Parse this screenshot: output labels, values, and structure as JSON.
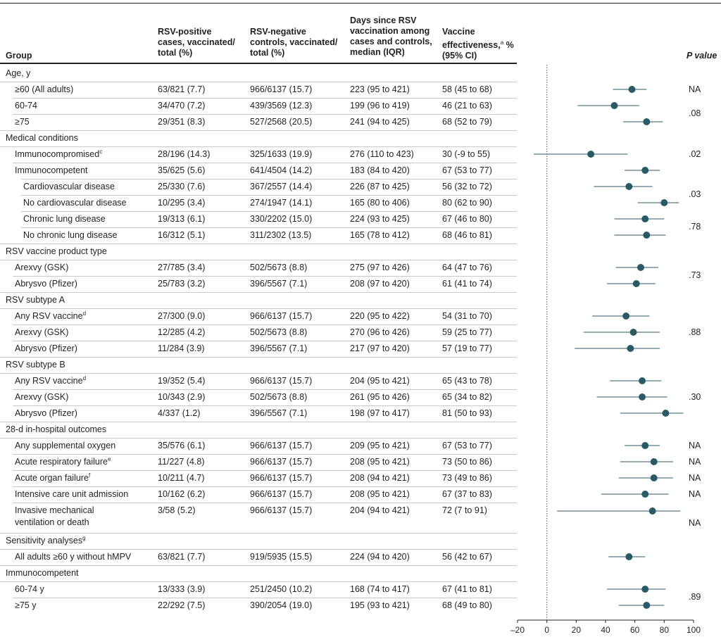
{
  "headers": {
    "group": "Group",
    "pos_l1": "RSV-positive",
    "pos_l2": "cases, vaccinated/",
    "pos_l3": "total (%)",
    "neg_l1": "RSV-negative",
    "neg_l2": "controls, vaccinated/",
    "neg_l3": "total (%)",
    "days_l1": "Days since RSV",
    "days_l2": "vaccination among",
    "days_l3": "cases and controls,",
    "days_l4": "median (IQR)",
    "ve_l1": "Vaccine",
    "ve_l2": "effectiveness,",
    "ve_l2_sup": "a",
    "ve_l2_tail": " %",
    "ve_l3": "(95% CI)",
    "p": "P value"
  },
  "rows": [
    {
      "label": "Age, y",
      "type": "section"
    },
    {
      "label": "≥60 (All adults)",
      "type": "item",
      "pos": "63/821 (7.7)",
      "neg": "966/6137 (15.7)",
      "days": "223 (95 to 421)",
      "ve": "58 (45 to 68)"
    },
    {
      "label": "60-74",
      "type": "item",
      "pos": "34/470 (7.2)",
      "neg": "439/3569 (12.3)",
      "days": "199 (96 to 419)",
      "ve": "46 (21 to 63)"
    },
    {
      "label": "≥75",
      "type": "item",
      "pos": "29/351 (8.3)",
      "neg": "527/2568 (20.5)",
      "days": "241 (94 to 425)",
      "ve": "68 (52 to 79)"
    },
    {
      "label": "Medical conditions",
      "type": "section"
    },
    {
      "label": "Immunocompromised",
      "sup": "c",
      "type": "item",
      "pos": "28/196 (14.3)",
      "neg": "325/1633 (19.9)",
      "days": "276 (110 to 423)",
      "ve": "30 (-9 to 55)"
    },
    {
      "label": "Immunocompetent",
      "type": "item",
      "pos": "35/625 (5.6)",
      "neg": "641/4504 (14.2)",
      "days": "183 (84 to 420)",
      "ve": "67 (53 to 77)"
    },
    {
      "label": "Cardiovascular disease",
      "type": "sub",
      "pos": "25/330 (7.6)",
      "neg": "367/2557 (14.4)",
      "days": "226 (87 to 425)",
      "ve": "56 (32 to 72)"
    },
    {
      "label": "No cardiovascular disease",
      "type": "sub",
      "pos": "10/295 (3.4)",
      "neg": "274/1947 (14.1)",
      "days": "165 (80 to 406)",
      "ve": "80 (62 to 90)"
    },
    {
      "label": "Chronic lung disease",
      "type": "sub",
      "pos": "19/313 (6.1)",
      "neg": "330/2202 (15.0)",
      "days": "224 (93 to 425)",
      "ve": "67 (46 to 80)"
    },
    {
      "label": "No chronic lung disease",
      "type": "sub",
      "pos": "16/312 (5.1)",
      "neg": "311/2302 (13.5)",
      "days": "165 (78 to 412)",
      "ve": "68 (46 to 81)"
    },
    {
      "label": "RSV vaccine product type",
      "type": "section"
    },
    {
      "label": "Arexvy (GSK)",
      "type": "item",
      "pos": "27/785 (3.4)",
      "neg": "502/5673 (8.8)",
      "days": "275 (97 to 426)",
      "ve": "64 (47 to 76)"
    },
    {
      "label": "Abrysvo (Pfizer)",
      "type": "item",
      "pos": "25/783 (3.2)",
      "neg": "396/5567 (7.1)",
      "days": "208 (97 to 420)",
      "ve": "61 (41 to 74)"
    },
    {
      "label": "RSV subtype A",
      "type": "section"
    },
    {
      "label": "Any RSV vaccine",
      "sup": "d",
      "type": "item",
      "pos": "27/300 (9.0)",
      "neg": "966/6137 (15.7)",
      "days": "220 (95 to 422)",
      "ve": "54 (31 to 70)"
    },
    {
      "label": "Arexvy (GSK)",
      "type": "item",
      "pos": "12/285 (4.2)",
      "neg": "502/5673 (8.8)",
      "days": "270 (96 to 426)",
      "ve": "59 (25 to 77)"
    },
    {
      "label": "Abrysvo (Pfizer)",
      "type": "item",
      "pos": "11/284 (3.9)",
      "neg": "396/5567 (7.1)",
      "days": "217 (97 to 420)",
      "ve": "57 (19 to 77)"
    },
    {
      "label": "RSV subtype B",
      "type": "section"
    },
    {
      "label": "Any RSV vaccine",
      "sup": "d",
      "type": "item",
      "pos": "19/352 (5.4)",
      "neg": "966/6137 (15.7)",
      "days": "204 (95 to 421)",
      "ve": "65 (43 to 78)"
    },
    {
      "label": "Arexvy (GSK)",
      "type": "item",
      "pos": "10/343 (2.9)",
      "neg": "502/5673 (8.8)",
      "days": "261 (95 to 426)",
      "ve": "65 (34 to 82)"
    },
    {
      "label": "Abrysvo (Pfizer)",
      "type": "item",
      "pos": "4/337 (1.2)",
      "neg": "396/5567 (7.1)",
      "days": "198 (97 to 417)",
      "ve": "81 (50 to 93)"
    },
    {
      "label": "28-d in-hospital outcomes",
      "type": "section"
    },
    {
      "label": "Any supplemental oxygen",
      "type": "item",
      "pos": "35/576 (6.1)",
      "neg": "966/6137 (15.7)",
      "days": "209 (95 to 421)",
      "ve": "67 (53 to 77)"
    },
    {
      "label": "Acute respiratory failure",
      "sup": "e",
      "type": "item",
      "pos": "11/227 (4.8)",
      "neg": "966/6137 (15.7)",
      "days": "208 (95 to 421)",
      "ve": "73 (50 to 86)"
    },
    {
      "label": "Acute organ failure",
      "sup": "f",
      "type": "item",
      "pos": "10/211 (4.7)",
      "neg": "966/6137 (15.7)",
      "days": "208 (94 to 421)",
      "ve": "73 (49 to 86)"
    },
    {
      "label": "Intensive care unit admission",
      "type": "item",
      "pos": "10/162 (6.2)",
      "neg": "966/6137 (15.7)",
      "days": "208 (95 to 421)",
      "ve": "67 (37 to 83)"
    },
    {
      "label": "Invasive mechanical",
      "label2": "ventilation or death",
      "type": "item",
      "pos": "3/58 (5.2)",
      "neg": "966/6137 (15.7)",
      "days": "204 (94 to 421)",
      "ve": "72 (7 to 91)"
    },
    {
      "label": "Sensitivity analyses",
      "sup": "g",
      "type": "section"
    },
    {
      "label": "All adults ≥60 y without hMPV",
      "type": "item",
      "pos": "63/821 (7.7)",
      "neg": "919/5935 (15.5)",
      "days": "224 (94 to 420)",
      "ve": "56 (42 to 67)"
    },
    {
      "label": "Immunocompetent",
      "type": "section"
    },
    {
      "label": "60-74 y",
      "type": "item",
      "pos": "13/333 (3.9)",
      "neg": "251/2450 (10.2)",
      "days": "168 (74 to 417)",
      "ve": "67 (41 to 81)"
    },
    {
      "label": "≥75 y",
      "type": "item",
      "pos": "22/292 (7.5)",
      "neg": "390/2054 (19.0)",
      "days": "195 (93 to 421)",
      "ve": "68 (49 to 80)"
    }
  ],
  "p_values": [
    {
      "text": "NA",
      "rows": [
        1
      ]
    },
    {
      "text": ".08",
      "rows": [
        2,
        3
      ]
    },
    {
      "text": ".02",
      "rows": [
        5
      ]
    },
    {
      "text": ".03",
      "rows": [
        7,
        8
      ]
    },
    {
      "text": ".78",
      "rows": [
        9,
        10
      ]
    },
    {
      "text": ".73",
      "rows": [
        12,
        13
      ]
    },
    {
      "text": ".88",
      "rows": [
        15,
        16,
        17
      ]
    },
    {
      "text": ".30",
      "rows": [
        19,
        20,
        21
      ]
    },
    {
      "text": "NA",
      "rows": [
        23
      ]
    },
    {
      "text": "NA",
      "rows": [
        24
      ]
    },
    {
      "text": "NA",
      "rows": [
        25
      ]
    },
    {
      "text": "NA",
      "rows": [
        26
      ]
    },
    {
      "text": "NA",
      "rows": [
        27
      ]
    },
    {
      "text": ".89",
      "rows": [
        31,
        32
      ]
    }
  ],
  "chart_data": {
    "type": "scatter",
    "title": "",
    "xlabel": "",
    "ylabel": "",
    "xlim": [
      -20,
      100
    ],
    "xticks": [
      -20,
      0,
      20,
      40,
      60,
      80,
      100
    ],
    "reference_line_x": 0,
    "marker_color": "#2a5a66",
    "points": [
      {
        "row": 1,
        "est": 58,
        "lo": 45,
        "hi": 68
      },
      {
        "row": 2,
        "est": 46,
        "lo": 21,
        "hi": 63
      },
      {
        "row": 3,
        "est": 68,
        "lo": 52,
        "hi": 79
      },
      {
        "row": 5,
        "est": 30,
        "lo": -9,
        "hi": 55
      },
      {
        "row": 6,
        "est": 67,
        "lo": 53,
        "hi": 77
      },
      {
        "row": 7,
        "est": 56,
        "lo": 32,
        "hi": 72
      },
      {
        "row": 8,
        "est": 80,
        "lo": 62,
        "hi": 90
      },
      {
        "row": 9,
        "est": 67,
        "lo": 46,
        "hi": 80
      },
      {
        "row": 10,
        "est": 68,
        "lo": 46,
        "hi": 81
      },
      {
        "row": 12,
        "est": 64,
        "lo": 47,
        "hi": 76
      },
      {
        "row": 13,
        "est": 61,
        "lo": 41,
        "hi": 74
      },
      {
        "row": 15,
        "est": 54,
        "lo": 31,
        "hi": 70
      },
      {
        "row": 16,
        "est": 59,
        "lo": 25,
        "hi": 77
      },
      {
        "row": 17,
        "est": 57,
        "lo": 19,
        "hi": 77
      },
      {
        "row": 19,
        "est": 65,
        "lo": 43,
        "hi": 78
      },
      {
        "row": 20,
        "est": 65,
        "lo": 34,
        "hi": 82
      },
      {
        "row": 21,
        "est": 81,
        "lo": 50,
        "hi": 93
      },
      {
        "row": 23,
        "est": 67,
        "lo": 53,
        "hi": 77
      },
      {
        "row": 24,
        "est": 73,
        "lo": 50,
        "hi": 86
      },
      {
        "row": 25,
        "est": 73,
        "lo": 49,
        "hi": 86
      },
      {
        "row": 26,
        "est": 67,
        "lo": 37,
        "hi": 83
      },
      {
        "row": 27,
        "est": 72,
        "lo": 7,
        "hi": 91
      },
      {
        "row": 29,
        "est": 56,
        "lo": 42,
        "hi": 67
      },
      {
        "row": 31,
        "est": 67,
        "lo": 41,
        "hi": 81
      },
      {
        "row": 32,
        "est": 68,
        "lo": 49,
        "hi": 80
      }
    ]
  }
}
